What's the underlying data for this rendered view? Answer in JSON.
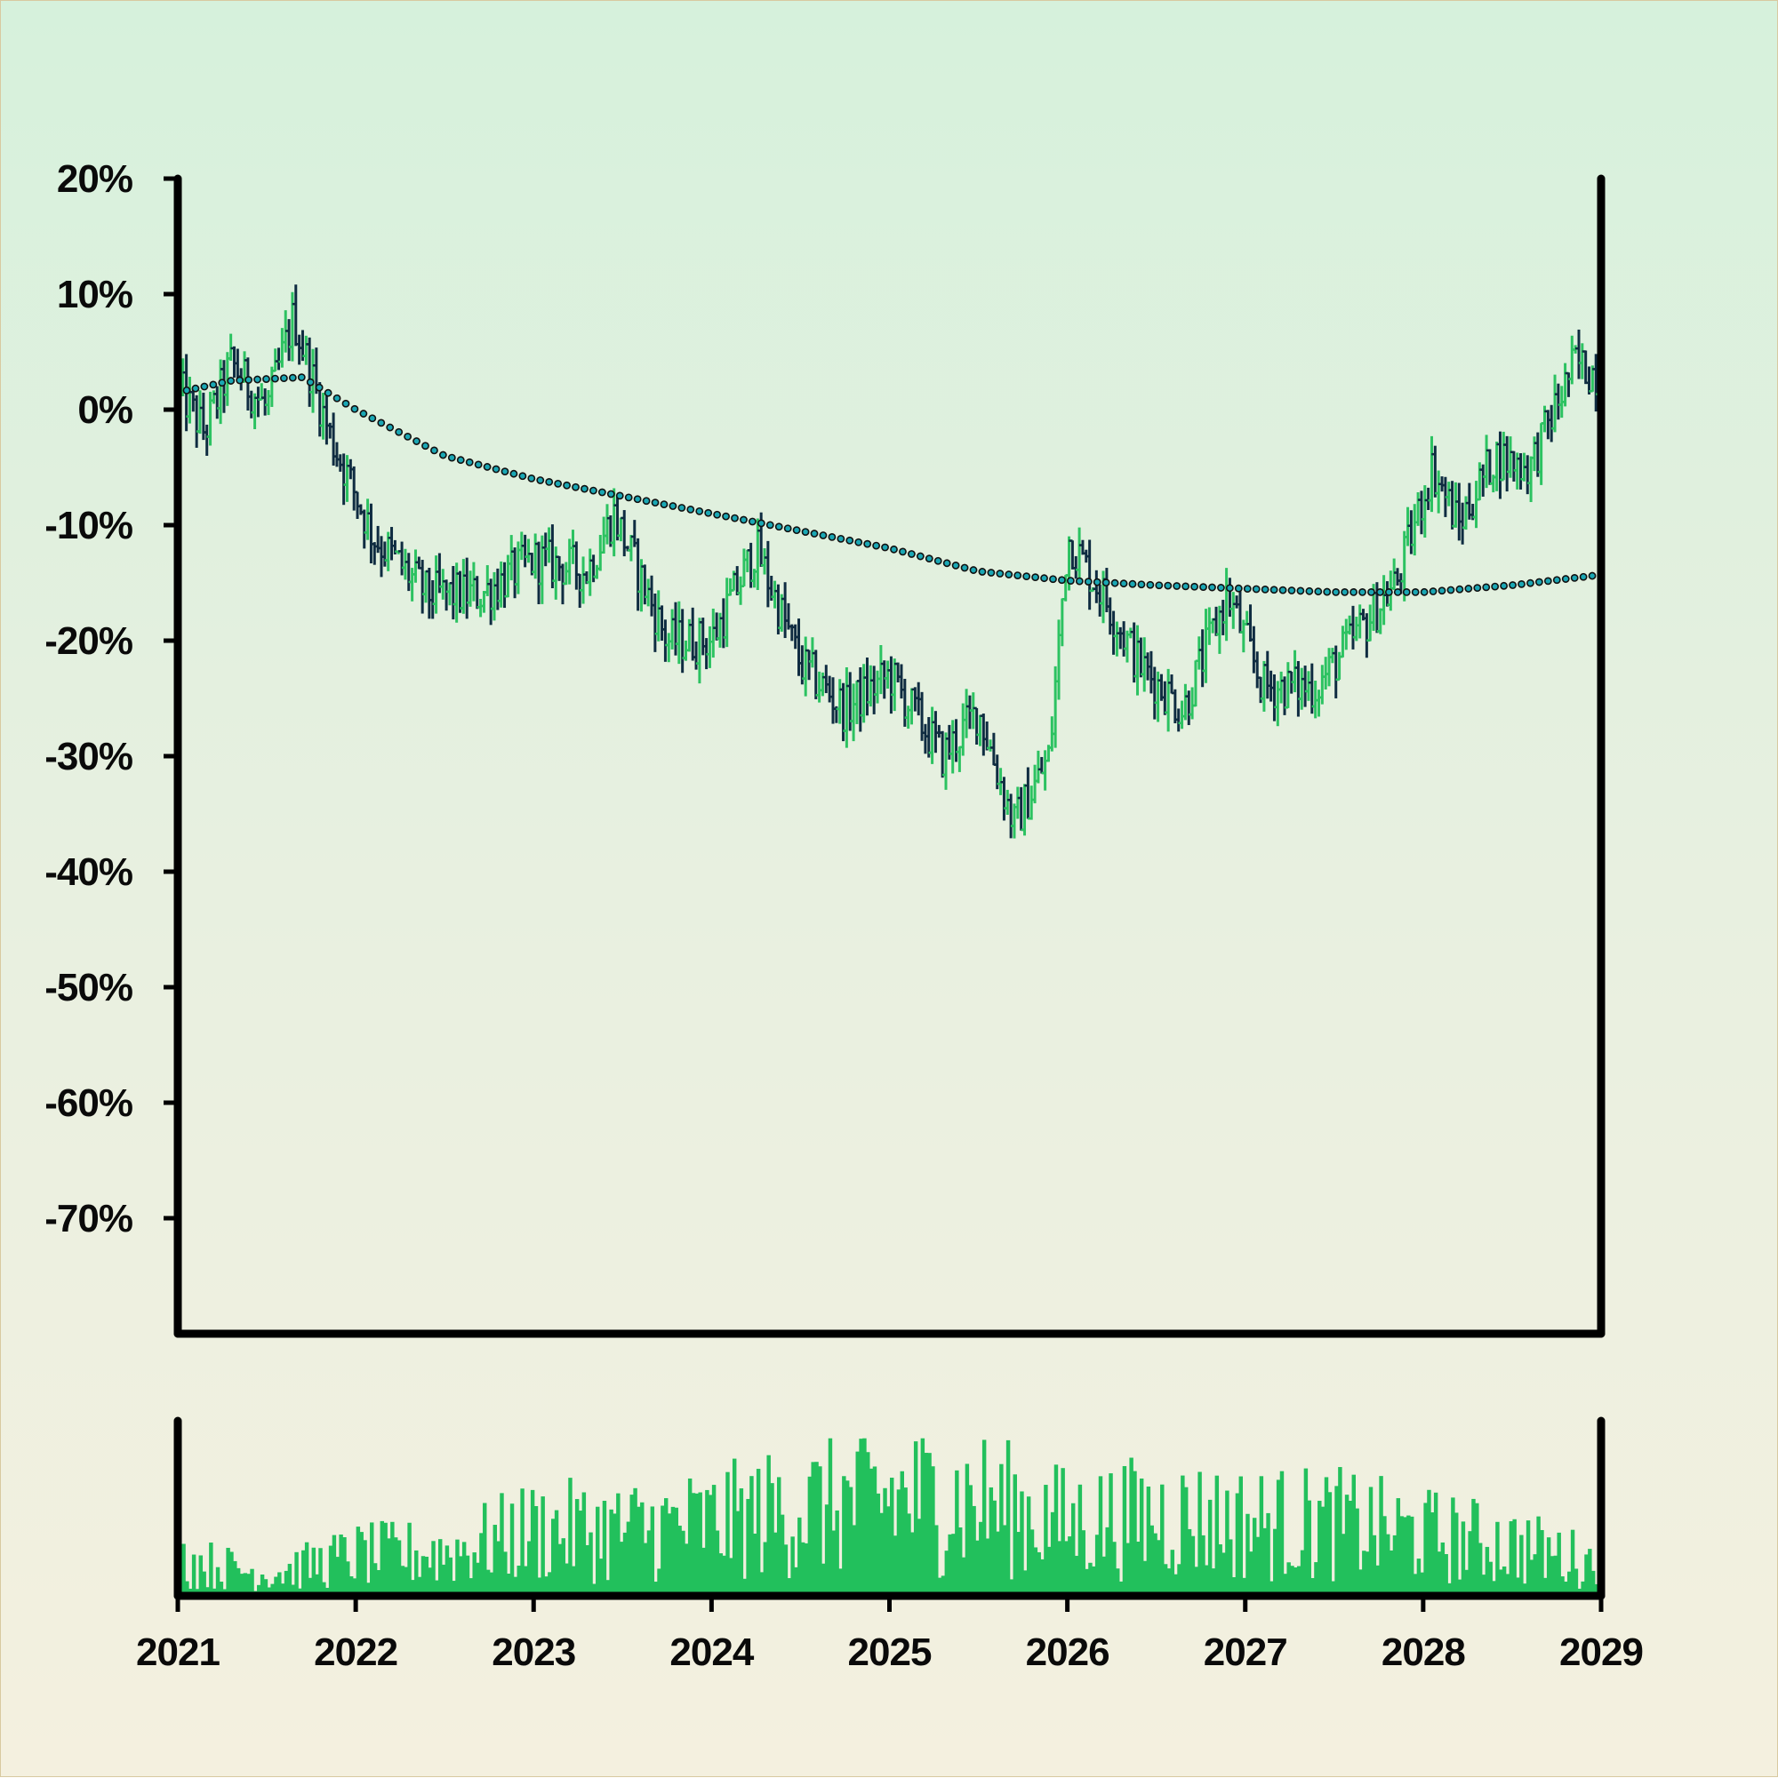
{
  "chart_data": {
    "type": "ohlc",
    "y_axis": {
      "format": "percent",
      "ylim": [
        -80,
        20
      ],
      "ticks": [
        "20%",
        "10%",
        "0%",
        "-10%",
        "-20%",
        "-30%",
        "-40%",
        "-50%",
        "-60%",
        "-70%"
      ],
      "tick_values": [
        20,
        10,
        0,
        -10,
        -20,
        -30,
        -40,
        -50,
        -60,
        -70
      ]
    },
    "x_axis": {
      "ticks": [
        "2021",
        "2022",
        "2023",
        "2024",
        "2025",
        "2026",
        "2027",
        "2028",
        "2029"
      ],
      "range": [
        "2021-01",
        "2029-01"
      ]
    },
    "price_path_pct": {
      "weeks_per_year": 52,
      "waypoints": [
        {
          "year": 2021.0,
          "value": 2
        },
        {
          "year": 2021.15,
          "value": -2
        },
        {
          "year": 2021.3,
          "value": 4
        },
        {
          "year": 2021.5,
          "value": 0
        },
        {
          "year": 2021.65,
          "value": 8
        },
        {
          "year": 2021.85,
          "value": -2
        },
        {
          "year": 2022.1,
          "value": -11
        },
        {
          "year": 2022.4,
          "value": -16
        },
        {
          "year": 2022.7,
          "value": -16
        },
        {
          "year": 2023.0,
          "value": -13
        },
        {
          "year": 2023.3,
          "value": -14
        },
        {
          "year": 2023.45,
          "value": -9
        },
        {
          "year": 2023.75,
          "value": -20
        },
        {
          "year": 2024.0,
          "value": -20
        },
        {
          "year": 2024.25,
          "value": -12
        },
        {
          "year": 2024.5,
          "value": -22
        },
        {
          "year": 2024.75,
          "value": -26
        },
        {
          "year": 2025.0,
          "value": -23
        },
        {
          "year": 2025.3,
          "value": -30
        },
        {
          "year": 2025.5,
          "value": -26
        },
        {
          "year": 2025.7,
          "value": -36
        },
        {
          "year": 2025.9,
          "value": -30
        },
        {
          "year": 2026.0,
          "value": -11
        },
        {
          "year": 2026.2,
          "value": -16
        },
        {
          "year": 2026.4,
          "value": -22
        },
        {
          "year": 2026.65,
          "value": -26
        },
        {
          "year": 2026.9,
          "value": -16
        },
        {
          "year": 2027.1,
          "value": -24
        },
        {
          "year": 2027.4,
          "value": -24
        },
        {
          "year": 2027.6,
          "value": -20
        },
        {
          "year": 2027.85,
          "value": -15
        },
        {
          "year": 2028.05,
          "value": -5
        },
        {
          "year": 2028.2,
          "value": -10
        },
        {
          "year": 2028.4,
          "value": -4
        },
        {
          "year": 2028.6,
          "value": -5
        },
        {
          "year": 2028.85,
          "value": 4
        },
        {
          "year": 2029.0,
          "value": 3
        }
      ]
    },
    "moving_average_pct": [
      {
        "year": 2021.0,
        "value": 1.5
      },
      {
        "year": 2021.3,
        "value": 2.5
      },
      {
        "year": 2021.7,
        "value": 2.8
      },
      {
        "year": 2022.0,
        "value": 0
      },
      {
        "year": 2022.5,
        "value": -4
      },
      {
        "year": 2023.0,
        "value": -6
      },
      {
        "year": 2023.5,
        "value": -7.5
      },
      {
        "year": 2024.0,
        "value": -9
      },
      {
        "year": 2024.5,
        "value": -10.5
      },
      {
        "year": 2025.0,
        "value": -12
      },
      {
        "year": 2025.5,
        "value": -14
      },
      {
        "year": 2026.0,
        "value": -14.8
      },
      {
        "year": 2026.5,
        "value": -15.2
      },
      {
        "year": 2027.0,
        "value": -15.5
      },
      {
        "year": 2027.5,
        "value": -15.8
      },
      {
        "year": 2028.0,
        "value": -15.8
      },
      {
        "year": 2028.5,
        "value": -15.2
      },
      {
        "year": 2029.0,
        "value": -14.3
      }
    ],
    "volume_profile": [
      {
        "year": 2021.0,
        "value": 0.25
      },
      {
        "year": 2021.5,
        "value": 0.15
      },
      {
        "year": 2022.0,
        "value": 0.28
      },
      {
        "year": 2022.5,
        "value": 0.3
      },
      {
        "year": 2023.0,
        "value": 0.45
      },
      {
        "year": 2023.5,
        "value": 0.45
      },
      {
        "year": 2024.0,
        "value": 0.5
      },
      {
        "year": 2024.5,
        "value": 0.6
      },
      {
        "year": 2025.0,
        "value": 0.68
      },
      {
        "year": 2025.5,
        "value": 0.65
      },
      {
        "year": 2026.0,
        "value": 0.5
      },
      {
        "year": 2026.5,
        "value": 0.55
      },
      {
        "year": 2027.0,
        "value": 0.5
      },
      {
        "year": 2027.5,
        "value": 0.5
      },
      {
        "year": 2028.0,
        "value": 0.42
      },
      {
        "year": 2028.5,
        "value": 0.35
      },
      {
        "year": 2029.0,
        "value": 0.22
      }
    ],
    "grid": false,
    "legend": "none"
  },
  "colors": {
    "up": "#2cc261",
    "down": "#0f2c41",
    "moving_average_dot": "#1aa7b4",
    "moving_average_outline": "#111111",
    "volume": "#22c05c",
    "axis": "#000000"
  }
}
